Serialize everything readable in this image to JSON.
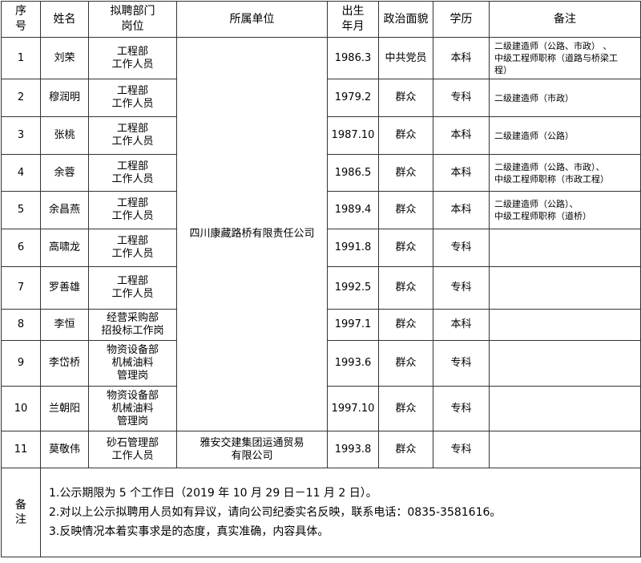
{
  "header": {
    "no": [
      "序",
      "号"
    ],
    "name": "姓名",
    "position": [
      "拟聘部门",
      "岗位"
    ],
    "unit": "所属单位",
    "birth": [
      "出生",
      "年月"
    ],
    "political": "政治面貌",
    "education": "学历",
    "remark": "备注"
  },
  "rows": [
    {
      "no": "1",
      "name": "刘荣",
      "position": [
        "工程部",
        "工作人员"
      ],
      "birth": "1986.3",
      "political": "中共党员",
      "education": "本科",
      "remark": [
        "二级建造师（公路、市政） 、",
        "中级工程师职称（道路与桥梁工",
        "程）"
      ]
    },
    {
      "no": "2",
      "name": "穆润明",
      "position": [
        "工程部",
        "工作人员"
      ],
      "birth": "1979.2",
      "political": "群众",
      "education": "专科",
      "remark": [
        "二级建造师（市政）"
      ]
    },
    {
      "no": "3",
      "name": "张桃",
      "position": [
        "工程部",
        "工作人员"
      ],
      "birth": "1987.10",
      "political": "群众",
      "education": "本科",
      "remark": [
        "二级建造师（公路）"
      ]
    },
    {
      "no": "4",
      "name": "余蓉",
      "position": [
        "工程部",
        "工作人员"
      ],
      "birth": "1986.5",
      "political": "群众",
      "education": "本科",
      "remark": [
        "二级建造师（公路、市政）、",
        "中级工程师职称（市政工程）"
      ]
    },
    {
      "no": "5",
      "name": "余昌燕",
      "position": [
        "工程部",
        "工作人员"
      ],
      "birth": "1989.4",
      "political": "群众",
      "education": "本科",
      "remark": [
        "二级建造师（公路）、",
        "中级工程师职称（道桥）"
      ]
    },
    {
      "no": "6",
      "name": "高啸龙",
      "position": [
        "工程部",
        "工作人员"
      ],
      "birth": "1991.8",
      "political": "群众",
      "education": "专科",
      "remark": []
    },
    {
      "no": "7",
      "name": "罗善雄",
      "position": [
        "工程部",
        "工作人员"
      ],
      "birth": "1992.5",
      "political": "群众",
      "education": "专科",
      "remark": []
    },
    {
      "no": "8",
      "name": "李恒",
      "position": [
        "经营采购部",
        "招投标工作岗"
      ],
      "birth": "1997.1",
      "political": "群众",
      "education": "本科",
      "remark": []
    },
    {
      "no": "9",
      "name": "李岱桥",
      "position": [
        "物资设备部",
        "机械油料",
        "管理岗"
      ],
      "birth": "1993.6",
      "political": "群众",
      "education": "专科",
      "remark": []
    },
    {
      "no": "10",
      "name": "兰朝阳",
      "position": [
        "物资设备部",
        "机械油料",
        "管理岗"
      ],
      "birth": "1997.10",
      "political": "群众",
      "education": "专科",
      "remark": []
    },
    {
      "no": "11",
      "name": "莫敬伟",
      "position": [
        "砂石管理部",
        "工作人员"
      ],
      "birth": "1993.8",
      "political": "群众",
      "education": "专科",
      "remark": []
    }
  ],
  "units": {
    "main": "四川康藏路桥有限责任公司",
    "row11": [
      "雅安交建集团运通贸易",
      "有限公司"
    ]
  },
  "remarks": {
    "label": [
      "备",
      "注"
    ],
    "lines": [
      "1.公示期限为 5 个工作日（2019 年 10 月 29 日－11 月 2 日）。",
      "2.对以上公示拟聘用人员如有异议，请向公司纪委实名反映，联系电话：0835-3581616。",
      "3.反映情况本着实事求是的态度，真实准确，内容具体。"
    ]
  }
}
